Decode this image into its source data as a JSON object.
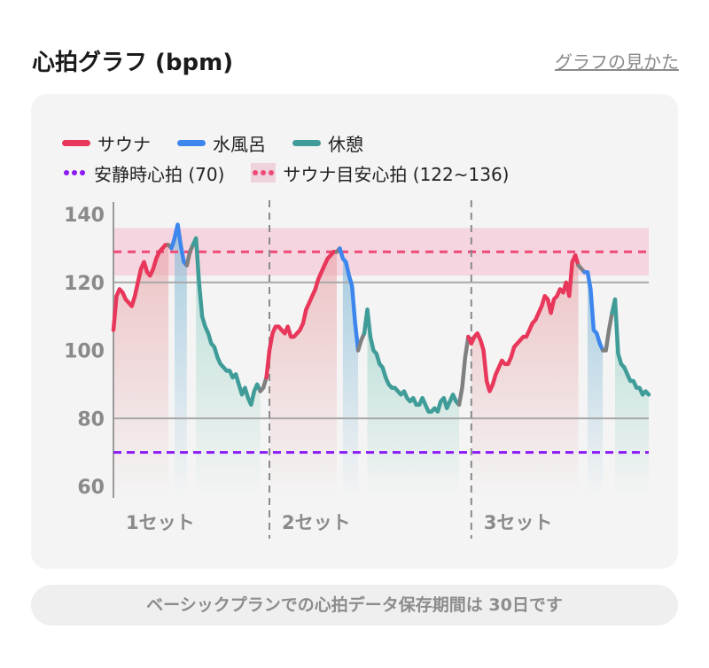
{
  "header": {
    "title": "心拍グラフ (bpm)",
    "help_link": "グラフの見かた"
  },
  "legend": {
    "sauna": "サウナ",
    "cold_bath": "水風呂",
    "rest": "休憩",
    "resting_hr": "安静時心拍 (70)",
    "sauna_target": "サウナ目安心拍 (122~136)"
  },
  "colors": {
    "sauna": "#e8375a",
    "cold_bath": "#3d86ee",
    "rest": "#3f9c98",
    "transition": "#808080",
    "resting_hr": "#8a17f5",
    "target": "#ee4a78",
    "target_band": "#f5d5df"
  },
  "footer": {
    "text": "ベーシックプランでの心拍データ保存期間は 30日です"
  },
  "chart_data": {
    "type": "line",
    "title": "心拍グラフ (bpm)",
    "ylim": [
      60,
      140
    ],
    "yticks": [
      60,
      80,
      100,
      120,
      140
    ],
    "ytick_labels": [
      "60",
      "80",
      "100",
      "120",
      "140"
    ],
    "gridlines": [
      80,
      120
    ],
    "resting_hr": 70,
    "sauna_target_range": [
      122,
      136
    ],
    "sauna_target_line": 129,
    "sets": [
      {
        "label": "1セット",
        "segments": [
          {
            "phase": "sauna",
            "values": [
              106,
              116,
              118,
              117,
              115,
              114,
              113,
              116,
              120,
              124,
              126,
              123,
              122,
              124,
              127,
              129,
              130,
              131,
              131
            ]
          },
          {
            "phase": "transition",
            "values": [
              130
            ]
          },
          {
            "phase": "cold_bath",
            "values": [
              133,
              137,
              131,
              126,
              125
            ]
          },
          {
            "phase": "transition",
            "values": [
              129,
              131
            ]
          },
          {
            "phase": "rest",
            "values": [
              133,
              120,
              110,
              107,
              105,
              102,
              101,
              98,
              96,
              95,
              94,
              94,
              92,
              93,
              90,
              87,
              89,
              86,
              84,
              88,
              90,
              88
            ]
          },
          {
            "phase": "transition",
            "values": [
              89,
              92
            ]
          }
        ]
      },
      {
        "label": "2セット",
        "segments": [
          {
            "phase": "sauna",
            "values": [
              100,
              105,
              107,
              107,
              106,
              105,
              107,
              104,
              104,
              105,
              106,
              108,
              112,
              114,
              116,
              118,
              121,
              123,
              125,
              127,
              128,
              129,
              129
            ]
          },
          {
            "phase": "transition",
            "values": [
              130
            ]
          },
          {
            "phase": "cold_bath",
            "values": [
              127,
              126,
              122,
              119,
              108,
              100
            ]
          },
          {
            "phase": "transition",
            "values": [
              103,
              105
            ]
          },
          {
            "phase": "rest",
            "values": [
              112,
              104,
              100,
              99,
              96,
              95,
              92,
              90,
              89,
              89,
              88,
              87,
              88,
              86,
              85,
              86,
              84,
              84,
              86,
              84,
              82,
              82,
              83,
              82,
              85,
              86,
              83,
              85,
              87,
              85,
              84
            ]
          },
          {
            "phase": "transition",
            "values": [
              89,
              98,
              104
            ]
          }
        ]
      },
      {
        "label": "3セット",
        "segments": [
          {
            "phase": "sauna",
            "values": [
              102,
              104,
              105,
              103,
              100,
              91,
              88,
              90,
              93,
              95,
              97,
              96,
              96,
              98,
              101,
              102,
              103,
              104,
              104,
              106,
              108,
              109,
              111,
              113,
              116,
              115,
              111,
              115,
              116,
              118,
              117,
              120,
              116,
              126,
              128,
              125
            ]
          },
          {
            "phase": "transition",
            "values": [
              124,
              123
            ]
          },
          {
            "phase": "cold_bath",
            "values": [
              123,
              118,
              106,
              105,
              102,
              100
            ]
          },
          {
            "phase": "transition",
            "values": [
              100,
              106,
              111
            ]
          },
          {
            "phase": "rest",
            "values": [
              115,
              99,
              96,
              95,
              93,
              91,
              91,
              89,
              89,
              87,
              88,
              87
            ]
          }
        ]
      }
    ]
  }
}
